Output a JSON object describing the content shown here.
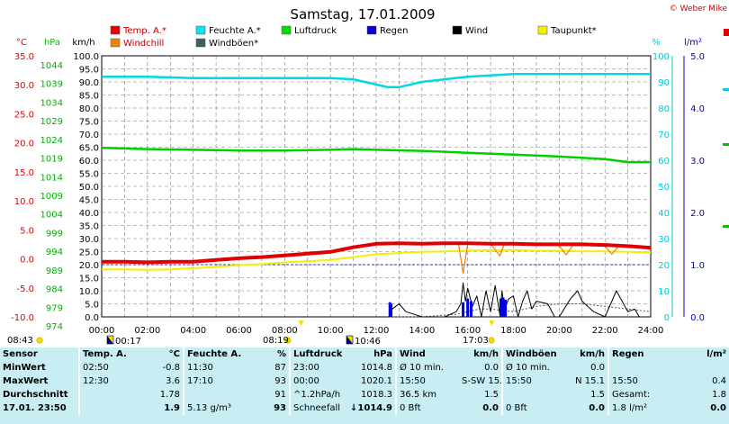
{
  "title": "Samstag, 17.01.2009",
  "copyright": "© Weber Mike",
  "legend": [
    {
      "label": "Temp. A.*",
      "color": "#e80000"
    },
    {
      "label": "Feuchte A.*",
      "color": "#00e8f0"
    },
    {
      "label": "Luftdruck",
      "color": "#00e000"
    },
    {
      "label": "Regen",
      "color": "#0000e0"
    },
    {
      "label": "Wind",
      "color": "#000000"
    },
    {
      "label": "Taupunkt*",
      "color": "#f0f000"
    },
    {
      "label": "Windchill",
      "color": "#f08000"
    },
    {
      "label": "Windböen*",
      "color": "#406060"
    }
  ],
  "axis_titles": {
    "temp": "°C",
    "pressure": "hPa",
    "wind": "km/h",
    "humidity": "%",
    "rain": "l/m²"
  },
  "axes": {
    "temp": {
      "min": -10,
      "max": 35,
      "step": 5,
      "ticks": [
        "35.0",
        "30.0",
        "25.0",
        "20.0",
        "15.0",
        "10.0",
        "5.0",
        "0.0",
        "-5.0",
        "-10.0"
      ]
    },
    "pressure": {
      "ticks": [
        "1044",
        "1039",
        "1034",
        "1029",
        "1024",
        "1019",
        "1014",
        "1009",
        "1004",
        "999",
        "994",
        "989",
        "984",
        "979",
        "974"
      ]
    },
    "wind": {
      "min": 0,
      "max": 100,
      "ticks": [
        "100.0",
        "95.0",
        "90.0",
        "85.0",
        "80.0",
        "75.0",
        "70.0",
        "65.0",
        "60.0",
        "55.0",
        "50.0",
        "45.0",
        "40.0",
        "35.0",
        "30.0",
        "25.0",
        "20.0",
        "15.0",
        "10.0",
        "5.0",
        "0.0"
      ]
    },
    "humidity": {
      "ticks": [
        "100",
        "90",
        "80",
        "70",
        "60",
        "50",
        "40",
        "30",
        "20",
        "10",
        "0"
      ]
    },
    "rain": {
      "ticks": [
        "5.0",
        "4.0",
        "3.0",
        "2.0",
        "1.0",
        "0.0"
      ]
    },
    "x": {
      "min": 0,
      "max": 24,
      "ticks": [
        "00:00",
        "02:00",
        "04:00",
        "06:00",
        "08:00",
        "10:00",
        "12:00",
        "14:00",
        "16:00",
        "18:00",
        "20:00",
        "22:00",
        "24:00"
      ]
    }
  },
  "sun_events": [
    {
      "label": "08:43",
      "icon": "sun-icon"
    },
    {
      "label": "00:17",
      "icon": "moon-icon"
    },
    {
      "label": "08:19",
      "icon": "sun-icon"
    },
    {
      "label": "10:46",
      "icon": "moon-icon"
    },
    {
      "label": "17:03",
      "icon": "sun-icon"
    }
  ],
  "chart_data": {
    "type": "line",
    "title": "Samstag, 17.01.2009",
    "xlabel": "",
    "xlim": [
      0,
      24
    ],
    "series": [
      {
        "name": "Feuchte A.*",
        "axis": "humidity",
        "x": [
          0,
          2,
          4,
          6,
          8,
          10,
          11,
          12,
          12.5,
          13,
          14,
          15,
          16,
          17,
          18,
          20,
          22,
          24
        ],
        "values": [
          92,
          92,
          91.5,
          91.5,
          91.5,
          91.5,
          91,
          89,
          88,
          88,
          90,
          91,
          92,
          92.5,
          93,
          93,
          93,
          93
        ]
      },
      {
        "name": "Luftdruck",
        "axis": "pressure",
        "x": [
          0,
          2,
          4,
          6,
          8,
          10,
          11,
          12,
          14,
          16,
          18,
          20,
          22,
          23,
          24
        ],
        "values": [
          1019.3,
          1019.0,
          1018.8,
          1018.6,
          1018.6,
          1018.8,
          1019.0,
          1018.8,
          1018.5,
          1018.0,
          1017.5,
          1017.0,
          1016.3,
          1015.5,
          1015.5
        ]
      },
      {
        "name": "Temp. A.*",
        "axis": "temp",
        "x": [
          0,
          1,
          2,
          3,
          4,
          5,
          6,
          7,
          8,
          9,
          10,
          11,
          12,
          13,
          14,
          15,
          16,
          17,
          18,
          19,
          20,
          21,
          22,
          23,
          24
        ],
        "values": [
          -0.5,
          -0.5,
          -0.6,
          -0.5,
          -0.5,
          -0.2,
          0.1,
          0.3,
          0.6,
          0.9,
          1.2,
          2.0,
          2.6,
          2.7,
          2.6,
          2.7,
          2.7,
          2.6,
          2.6,
          2.5,
          2.5,
          2.5,
          2.4,
          2.2,
          1.9
        ]
      },
      {
        "name": "Taupunkt*",
        "axis": "temp",
        "x": [
          0,
          1,
          2,
          3,
          4,
          5,
          6,
          7,
          8,
          9,
          10,
          11,
          12,
          13,
          14,
          15,
          16,
          17,
          18,
          19,
          20,
          21,
          22,
          23,
          24
        ],
        "values": [
          -1.8,
          -1.8,
          -1.9,
          -1.8,
          -1.6,
          -1.4,
          -1.1,
          -0.9,
          -0.6,
          -0.4,
          -0.2,
          0.3,
          0.8,
          1.0,
          1.2,
          1.3,
          1.4,
          1.5,
          1.5,
          1.4,
          1.4,
          1.3,
          1.3,
          1.2,
          1.1
        ]
      },
      {
        "name": "Windchill",
        "axis": "temp",
        "x": [
          0,
          2,
          4,
          6,
          8,
          10,
          11,
          12,
          13,
          14,
          15,
          15.6,
          15.8,
          16,
          16.5,
          17,
          17.4,
          17.6,
          18,
          19,
          20,
          20.3,
          20.6,
          21,
          22,
          22.3,
          22.6,
          23,
          24
        ],
        "values": [
          -0.6,
          -0.7,
          -0.6,
          0.0,
          0.5,
          1.1,
          2.0,
          2.5,
          2.6,
          2.5,
          2.6,
          2.6,
          -2.5,
          2.6,
          2.5,
          2.6,
          0.5,
          2.5,
          2.5,
          2.4,
          2.3,
          0.7,
          2.3,
          2.3,
          2.2,
          0.8,
          2.2,
          2.0,
          1.8
        ]
      },
      {
        "name": "Wind",
        "axis": "wind",
        "x": [
          0,
          12.6,
          12.7,
          13.0,
          13.3,
          14,
          15,
          15.5,
          15.7,
          15.8,
          15.9,
          16.0,
          16.2,
          16.4,
          16.6,
          16.8,
          17.0,
          17.2,
          17.4,
          17.5,
          17.6,
          17.8,
          18.0,
          18.2,
          18.4,
          18.6,
          18.8,
          19,
          19.5,
          19.8,
          20,
          20.5,
          20.8,
          21,
          21.5,
          22,
          22.5,
          23,
          23.3,
          23.5,
          24
        ],
        "values": [
          0,
          0,
          3,
          5,
          2,
          0,
          0,
          2,
          5,
          13,
          6,
          11,
          4,
          8,
          0,
          10,
          2,
          12,
          1,
          10,
          3,
          7,
          8,
          0,
          6,
          10,
          3,
          6,
          5,
          0,
          0,
          7,
          10,
          6,
          2,
          0,
          10,
          2,
          3,
          0,
          0
        ]
      },
      {
        "name": "Windböen*",
        "axis": "wind",
        "x": [
          0,
          12.5,
          14,
          15.5,
          16,
          16.5,
          17,
          18,
          19,
          20,
          21,
          22,
          23,
          24
        ],
        "values": [
          0,
          0,
          0,
          1,
          2,
          3,
          3,
          2,
          4,
          5,
          5,
          4,
          3,
          2
        ]
      },
      {
        "name": "Regen",
        "axis": "rain",
        "x": [
          12.6,
          12.65,
          15.8,
          16.0,
          16.15,
          17.45,
          17.55,
          17.65
        ],
        "values": [
          0.28,
          0.25,
          0.28,
          0.35,
          0.3,
          0.35,
          0.37,
          0.33
        ]
      }
    ]
  },
  "stats": {
    "header": {
      "sensor": "Sensor",
      "temp": "Temp. A.",
      "temp_unit": "°C",
      "hum": "Feuchte A.",
      "hum_unit": "%",
      "press": "Luftdruck",
      "press_unit": "hPa",
      "wind": "Wind",
      "wind_unit": "km/h",
      "gust": "Windböen",
      "gust_unit": "km/h",
      "rain": "Regen",
      "rain_unit": "l/m²"
    },
    "min": {
      "label": "MinWert",
      "temp_t": "02:50",
      "temp_v": "-0.8",
      "hum_t": "11:30",
      "hum_v": "87",
      "press_t": "23:00",
      "press_v": "1014.8",
      "wind_t": "Ø 10 min.",
      "wind_v": "0.0",
      "gust_t": "Ø 10 min.",
      "gust_v": "0.0",
      "rain_t": "",
      "rain_v": ""
    },
    "max": {
      "label": "MaxWert",
      "temp_t": "12:30",
      "temp_v": "3.6",
      "hum_t": "17:10",
      "hum_v": "93",
      "press_t": "00:00",
      "press_v": "1020.1",
      "wind_t": "15:50",
      "wind_d": "S-SW 15.1",
      "gust_t": "15:50",
      "gust_d": "N 15.1",
      "rain_t": "15:50",
      "rain_v": "0.4"
    },
    "avg": {
      "label": "Durchschnitt",
      "temp_v": "1.78",
      "hum_v": "91",
      "press_t": "^1.2hPa/h",
      "press_v": "1018.3",
      "wind_t": "36.5 km",
      "wind_v": "1.5",
      "gust_v": "1.5",
      "rain_t": "Gesamt:",
      "rain_v": "1.8"
    },
    "cur": {
      "label": "17.01. 23:50",
      "temp_v": "1.9",
      "hum_t": "5.13 g/m³",
      "hum_v": "93",
      "press_t": "Schneefall",
      "press_arrow": "↓",
      "press_v": "1014.9",
      "wind_t": "0 Bft",
      "wind_v": "0.0",
      "gust_t": "0 Bft",
      "gust_v": "0.0",
      "rain_t": "1.8 l/m²",
      "rain_v": "0.0"
    }
  }
}
